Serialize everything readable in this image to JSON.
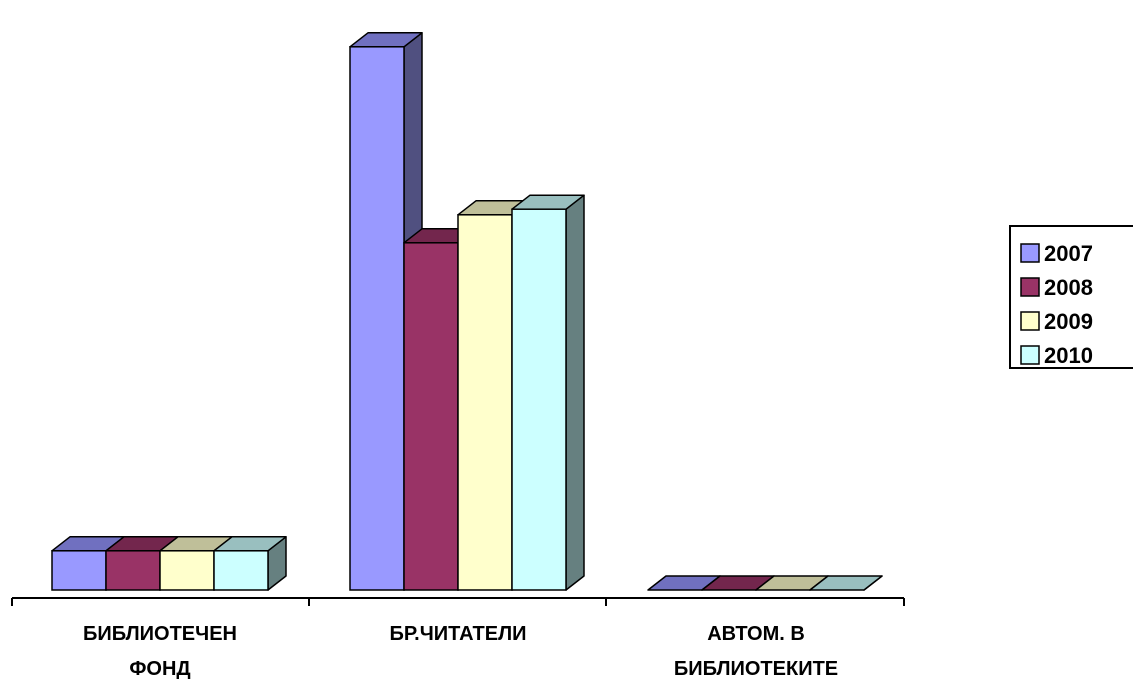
{
  "chart_data": {
    "type": "bar",
    "style": "3d-clustered-column",
    "categories": [
      [
        "БИБЛИОТЕЧЕН",
        "ФОНД"
      ],
      [
        "БР.ЧИТАТЕЛИ"
      ],
      [
        "АВТОМ. В",
        "БИБЛИОТЕКИТЕ"
      ]
    ],
    "series": [
      {
        "name": "2007",
        "values": [
          70,
          970,
          0
        ]
      },
      {
        "name": "2008",
        "values": [
          70,
          620,
          0
        ]
      },
      {
        "name": "2009",
        "values": [
          70,
          670,
          0
        ]
      },
      {
        "name": "2010",
        "values": [
          70,
          680,
          0
        ]
      }
    ],
    "ylim": [
      0,
      1000
    ],
    "grid": false,
    "legend_position": "right",
    "colors": [
      {
        "front": "#9999ff",
        "top": "#7070c0",
        "side": "#505080"
      },
      {
        "front": "#993366",
        "top": "#73264d",
        "side": "#4d1a33"
      },
      {
        "front": "#ffffcc",
        "top": "#bfbf99",
        "side": "#808066"
      },
      {
        "front": "#ccffff",
        "top": "#99bfbf",
        "side": "#668080"
      }
    ]
  }
}
